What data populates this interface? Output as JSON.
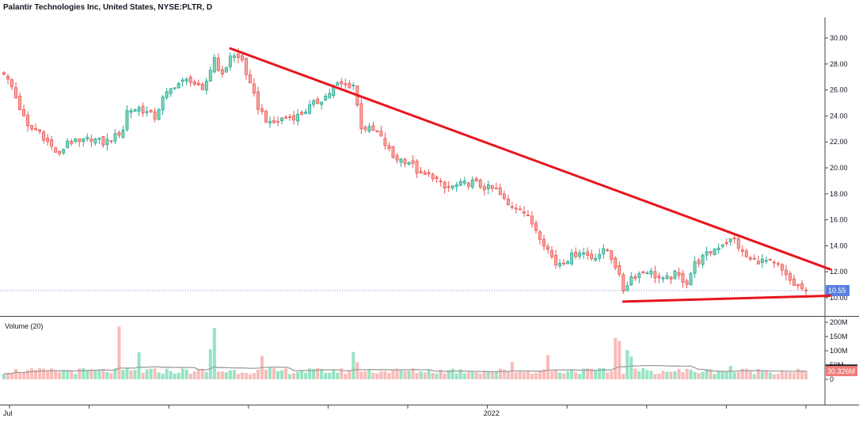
{
  "header": {
    "title": "Palantir Technologies Inc, United States, NYSE:PLTR, D"
  },
  "volume_panel": {
    "label": "Volume (20)"
  },
  "colors": {
    "up": "#26a69a",
    "up_fill": "#7fd8b0",
    "down": "#ef5350",
    "down_fill": "#f5a8a4",
    "vol_up": "#97e3c4",
    "vol_down": "#f8bcb8",
    "trendline": "#e8141c",
    "price_badge": "#5b7fe0",
    "vol_ma_badge": "#131722",
    "vol_badge": "#f07a78",
    "ma_line": "#9e9e9e",
    "price_dotted": "#6f8fe0"
  },
  "chart_data": [
    {
      "type": "candlestick",
      "price_axis": {
        "ticks": [
          "30.00",
          "28.00",
          "26.00",
          "24.00",
          "22.00",
          "20.00",
          "18.00",
          "16.00",
          "14.00",
          "12.00",
          "10.00"
        ],
        "range": [
          8.5,
          31.7
        ]
      },
      "last_price_label": "10.55",
      "last_price": 10.55,
      "x_axis": {
        "labels": [
          {
            "text": "Jul",
            "index": 1
          },
          {
            "text": "2022",
            "index": 122
          }
        ]
      },
      "total_bars": 203,
      "anchors": [
        [
          0,
          27.2
        ],
        [
          2,
          26.2
        ],
        [
          4,
          24.6
        ],
        [
          6,
          23.1
        ],
        [
          9,
          22.8
        ],
        [
          12,
          21.6
        ],
        [
          14,
          20.9
        ],
        [
          16,
          22.1
        ],
        [
          19,
          21.9
        ],
        [
          22,
          22.3
        ],
        [
          25,
          21.9
        ],
        [
          28,
          22.4
        ],
        [
          30,
          23.0
        ],
        [
          31,
          24.4
        ],
        [
          34,
          24.6
        ],
        [
          38,
          23.9
        ],
        [
          40,
          25.3
        ],
        [
          43,
          26.4
        ],
        [
          47,
          26.8
        ],
        [
          50,
          25.8
        ],
        [
          53,
          28.5
        ],
        [
          55,
          27.0
        ],
        [
          57,
          28.7
        ],
        [
          60,
          28.3
        ],
        [
          62,
          26.3
        ],
        [
          64,
          24.7
        ],
        [
          67,
          23.3
        ],
        [
          70,
          23.8
        ],
        [
          74,
          24.0
        ],
        [
          78,
          24.9
        ],
        [
          81,
          25.5
        ],
        [
          84,
          26.4
        ],
        [
          88,
          26.4
        ],
        [
          90,
          23.2
        ],
        [
          94,
          22.7
        ],
        [
          96,
          21.8
        ],
        [
          98,
          20.8
        ],
        [
          102,
          20.5
        ],
        [
          105,
          19.4
        ],
        [
          108,
          19.4
        ],
        [
          111,
          18.4
        ],
        [
          115,
          18.7
        ],
        [
          118,
          18.9
        ],
        [
          121,
          18.5
        ],
        [
          124,
          18.3
        ],
        [
          127,
          17.1
        ],
        [
          130,
          17.0
        ],
        [
          134,
          15.3
        ],
        [
          137,
          13.7
        ],
        [
          139,
          12.6
        ],
        [
          142,
          13.0
        ],
        [
          145,
          13.6
        ],
        [
          148,
          13.1
        ],
        [
          152,
          13.7
        ],
        [
          154,
          12.5
        ],
        [
          156,
          10.6
        ],
        [
          158,
          11.6
        ],
        [
          162,
          12.1
        ],
        [
          166,
          11.3
        ],
        [
          169,
          11.8
        ],
        [
          172,
          11.2
        ],
        [
          174,
          12.6
        ],
        [
          177,
          13.3
        ],
        [
          181,
          14.2
        ],
        [
          184,
          14.5
        ],
        [
          186,
          13.4
        ],
        [
          188,
          12.9
        ],
        [
          192,
          12.8
        ],
        [
          195,
          12.4
        ],
        [
          197,
          11.6
        ],
        [
          199,
          11.0
        ],
        [
          202,
          10.55
        ]
      ],
      "volume_axis": {
        "ticks": [
          "200M",
          "150M",
          "100M",
          "50M",
          "0"
        ],
        "max": 208
      },
      "volume_ma_label": "32.376M",
      "volume_ma": 32.376,
      "last_volume_label": "30.326M",
      "last_volume": 30.326,
      "volume_spikes": [
        [
          29,
          185
        ],
        [
          53,
          180
        ],
        [
          52,
          105
        ],
        [
          34,
          95
        ],
        [
          65,
          82
        ],
        [
          88,
          96
        ],
        [
          89,
          60
        ],
        [
          113,
          37
        ],
        [
          128,
          61
        ],
        [
          137,
          85
        ],
        [
          154,
          145
        ],
        [
          155,
          135
        ],
        [
          157,
          103
        ],
        [
          158,
          80
        ],
        [
          183,
          47
        ]
      ],
      "trendlines": [
        {
          "name": "descending-resistance",
          "from": [
            57,
            29.2
          ],
          "to": [
            208,
            12.2
          ]
        },
        {
          "name": "support-base",
          "from": [
            156,
            9.7
          ],
          "to": [
            208,
            10.15
          ]
        }
      ]
    }
  ]
}
